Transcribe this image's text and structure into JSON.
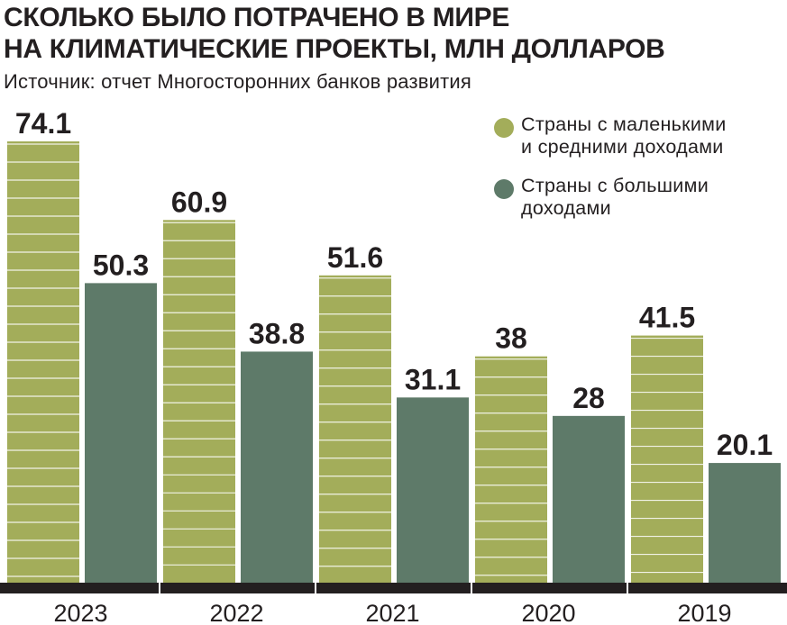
{
  "title_lines": [
    "СКОЛЬКО БЫЛО ПОТРАЧЕНО В МИРЕ",
    "НА КЛИМАТИЧЕСКИЕ ПРОЕКТЫ, МЛН ДОЛЛАРОВ"
  ],
  "source": "Источник: отчет Многосторонних банков развития",
  "legend": [
    {
      "lines": [
        "Страны с маленькими",
        "и средними доходами"
      ],
      "color": "#a3ad5a"
    },
    {
      "lines": [
        "Страны с большими",
        "доходами"
      ],
      "color": "#5e7a69"
    }
  ],
  "colors": {
    "series_low_mid": "#a3ad5a",
    "series_high": "#5e7a69",
    "baseline": "#231f20",
    "stripe": "#ffffff"
  },
  "chart_data": {
    "type": "bar",
    "categories": [
      "2023",
      "2022",
      "2021",
      "2020",
      "2019"
    ],
    "series": [
      {
        "name": "Страны с маленькими и средними доходами",
        "values": [
          74.1,
          60.9,
          51.6,
          38,
          41.5
        ],
        "labels": [
          "74.1",
          "60.9",
          "51.6",
          "38",
          "41.5"
        ]
      },
      {
        "name": "Страны с большими доходами",
        "values": [
          50.3,
          38.8,
          31.1,
          28,
          20.1
        ],
        "labels": [
          "50.3",
          "38.8",
          "31.1",
          "28",
          "20.1"
        ]
      }
    ],
    "title": "СКОЛЬКО БЫЛО ПОТРАЧЕНО В МИРЕ НА КЛИМАТИЧЕСКИЕ ПРОЕКТЫ, МЛН ДОЛЛАРОВ",
    "xlabel": "",
    "ylabel": "",
    "ylim": [
      0,
      74.1
    ],
    "legend_position": "top-right",
    "grid": false
  }
}
